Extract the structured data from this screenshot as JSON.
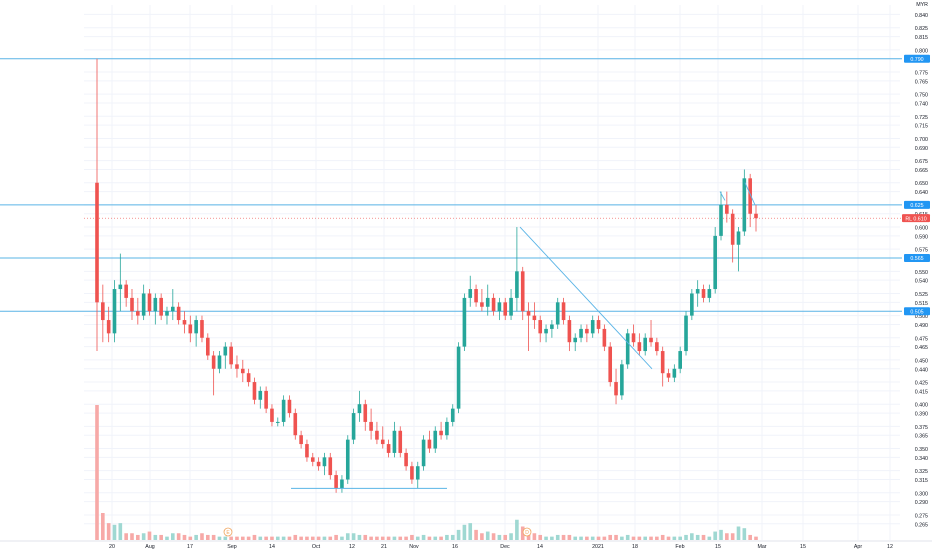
{
  "chart_data": {
    "type": "candlestick",
    "currency": "MYR",
    "colors": {
      "up": "#26a69a",
      "down": "#ef5350",
      "up_volume": "#9fd8d2",
      "down_volume": "#f7a9a7",
      "grid": "#f0f3fa",
      "level_line": "#5ab4e6",
      "trend_line": "#5ab4e6",
      "axis_text": "#131722",
      "last_price_badge": "#ef5350",
      "level_badge": "#2196f3"
    },
    "ylim": [
      0.258,
      0.845
    ],
    "y_ticks": [
      "0.840",
      "0.825",
      "0.815",
      "0.800",
      "0.790",
      "0.775",
      "0.765",
      "0.750",
      "0.740",
      "0.725",
      "0.715",
      "0.700",
      "0.690",
      "0.675",
      "0.665",
      "0.650",
      "0.640",
      "0.625",
      "0.615",
      "0.600",
      "0.590",
      "0.575",
      "0.565",
      "0.550",
      "0.540",
      "0.525",
      "0.515",
      "0.500",
      "0.490",
      "0.475",
      "0.465",
      "0.450",
      "0.440",
      "0.425",
      "0.415",
      "0.400",
      "0.390",
      "0.375",
      "0.365",
      "0.350",
      "0.340",
      "0.325",
      "0.315",
      "0.300",
      "0.290",
      "0.275",
      "0.265"
    ],
    "x_ticks": [
      "20",
      "Aug",
      "17",
      "Sep",
      "14",
      "Oct",
      "12",
      "21",
      "Nov",
      "16",
      "Dec",
      "14",
      "2021",
      "18",
      "Feb",
      "15",
      "Mar",
      "15",
      "Apr",
      "12"
    ],
    "horizontal_levels": [
      {
        "price": 0.79,
        "label": "0.790"
      },
      {
        "price": 0.625,
        "label": "0.625"
      },
      {
        "price": 0.565,
        "label": "0.565"
      },
      {
        "price": 0.505,
        "label": "0.505"
      }
    ],
    "last_price": {
      "price": 0.61,
      "label": "RL 0.610"
    },
    "event_markers": [
      "E",
      "D"
    ],
    "candles": [
      {
        "o": 0.65,
        "h": 0.79,
        "l": 0.46,
        "c": 0.515,
        "v": 0.4
      },
      {
        "o": 0.515,
        "h": 0.535,
        "l": 0.47,
        "c": 0.495,
        "v": 0.08
      },
      {
        "o": 0.495,
        "h": 0.51,
        "l": 0.47,
        "c": 0.48,
        "v": 0.05
      },
      {
        "o": 0.48,
        "h": 0.54,
        "l": 0.47,
        "c": 0.53,
        "v": 0.045
      },
      {
        "o": 0.53,
        "h": 0.57,
        "l": 0.505,
        "c": 0.535,
        "v": 0.05
      },
      {
        "o": 0.535,
        "h": 0.54,
        "l": 0.51,
        "c": 0.52,
        "v": 0.02
      },
      {
        "o": 0.52,
        "h": 0.53,
        "l": 0.495,
        "c": 0.505,
        "v": 0.02
      },
      {
        "o": 0.505,
        "h": 0.52,
        "l": 0.49,
        "c": 0.5,
        "v": 0.015
      },
      {
        "o": 0.5,
        "h": 0.535,
        "l": 0.495,
        "c": 0.525,
        "v": 0.02
      },
      {
        "o": 0.525,
        "h": 0.53,
        "l": 0.5,
        "c": 0.505,
        "v": 0.025
      },
      {
        "o": 0.505,
        "h": 0.525,
        "l": 0.49,
        "c": 0.52,
        "v": 0.015
      },
      {
        "o": 0.52,
        "h": 0.525,
        "l": 0.495,
        "c": 0.5,
        "v": 0.015
      },
      {
        "o": 0.5,
        "h": 0.51,
        "l": 0.49,
        "c": 0.505,
        "v": 0.01
      },
      {
        "o": 0.505,
        "h": 0.53,
        "l": 0.495,
        "c": 0.51,
        "v": 0.02
      },
      {
        "o": 0.51,
        "h": 0.515,
        "l": 0.49,
        "c": 0.495,
        "v": 0.02
      },
      {
        "o": 0.495,
        "h": 0.505,
        "l": 0.48,
        "c": 0.49,
        "v": 0.015
      },
      {
        "o": 0.49,
        "h": 0.5,
        "l": 0.47,
        "c": 0.48,
        "v": 0.01
      },
      {
        "o": 0.48,
        "h": 0.5,
        "l": 0.465,
        "c": 0.495,
        "v": 0.015
      },
      {
        "o": 0.495,
        "h": 0.5,
        "l": 0.47,
        "c": 0.475,
        "v": 0.02
      },
      {
        "o": 0.475,
        "h": 0.48,
        "l": 0.45,
        "c": 0.455,
        "v": 0.015
      },
      {
        "o": 0.455,
        "h": 0.46,
        "l": 0.41,
        "c": 0.44,
        "v": 0.015
      },
      {
        "o": 0.44,
        "h": 0.46,
        "l": 0.435,
        "c": 0.455,
        "v": 0.01
      },
      {
        "o": 0.455,
        "h": 0.47,
        "l": 0.44,
        "c": 0.465,
        "v": 0.01
      },
      {
        "o": 0.465,
        "h": 0.47,
        "l": 0.44,
        "c": 0.445,
        "v": 0.01
      },
      {
        "o": 0.445,
        "h": 0.455,
        "l": 0.43,
        "c": 0.44,
        "v": 0.01
      },
      {
        "o": 0.44,
        "h": 0.45,
        "l": 0.425,
        "c": 0.435,
        "v": 0.01
      },
      {
        "o": 0.435,
        "h": 0.44,
        "l": 0.42,
        "c": 0.425,
        "v": 0.01
      },
      {
        "o": 0.425,
        "h": 0.43,
        "l": 0.4,
        "c": 0.405,
        "v": 0.015
      },
      {
        "o": 0.405,
        "h": 0.42,
        "l": 0.395,
        "c": 0.415,
        "v": 0.01
      },
      {
        "o": 0.415,
        "h": 0.42,
        "l": 0.39,
        "c": 0.395,
        "v": 0.01
      },
      {
        "o": 0.395,
        "h": 0.4,
        "l": 0.375,
        "c": 0.38,
        "v": 0.01
      },
      {
        "o": 0.38,
        "h": 0.385,
        "l": 0.375,
        "c": 0.38,
        "v": 0.01
      },
      {
        "o": 0.38,
        "h": 0.41,
        "l": 0.375,
        "c": 0.405,
        "v": 0.01
      },
      {
        "o": 0.405,
        "h": 0.41,
        "l": 0.385,
        "c": 0.39,
        "v": 0.01
      },
      {
        "o": 0.39,
        "h": 0.395,
        "l": 0.36,
        "c": 0.365,
        "v": 0.015
      },
      {
        "o": 0.365,
        "h": 0.37,
        "l": 0.35,
        "c": 0.355,
        "v": 0.01
      },
      {
        "o": 0.355,
        "h": 0.36,
        "l": 0.335,
        "c": 0.34,
        "v": 0.01
      },
      {
        "o": 0.34,
        "h": 0.345,
        "l": 0.33,
        "c": 0.335,
        "v": 0.01
      },
      {
        "o": 0.335,
        "h": 0.34,
        "l": 0.325,
        "c": 0.33,
        "v": 0.01
      },
      {
        "o": 0.33,
        "h": 0.345,
        "l": 0.32,
        "c": 0.34,
        "v": 0.01
      },
      {
        "o": 0.34,
        "h": 0.345,
        "l": 0.315,
        "c": 0.32,
        "v": 0.01
      },
      {
        "o": 0.32,
        "h": 0.325,
        "l": 0.3,
        "c": 0.305,
        "v": 0.015
      },
      {
        "o": 0.305,
        "h": 0.32,
        "l": 0.3,
        "c": 0.315,
        "v": 0.01
      },
      {
        "o": 0.315,
        "h": 0.365,
        "l": 0.31,
        "c": 0.36,
        "v": 0.02
      },
      {
        "o": 0.36,
        "h": 0.395,
        "l": 0.355,
        "c": 0.39,
        "v": 0.02
      },
      {
        "o": 0.39,
        "h": 0.415,
        "l": 0.38,
        "c": 0.4,
        "v": 0.015
      },
      {
        "o": 0.4,
        "h": 0.405,
        "l": 0.37,
        "c": 0.38,
        "v": 0.015
      },
      {
        "o": 0.38,
        "h": 0.395,
        "l": 0.36,
        "c": 0.37,
        "v": 0.01
      },
      {
        "o": 0.37,
        "h": 0.38,
        "l": 0.355,
        "c": 0.36,
        "v": 0.01
      },
      {
        "o": 0.36,
        "h": 0.375,
        "l": 0.35,
        "c": 0.355,
        "v": 0.01
      },
      {
        "o": 0.355,
        "h": 0.36,
        "l": 0.34,
        "c": 0.345,
        "v": 0.01
      },
      {
        "o": 0.345,
        "h": 0.38,
        "l": 0.34,
        "c": 0.37,
        "v": 0.01
      },
      {
        "o": 0.37,
        "h": 0.375,
        "l": 0.34,
        "c": 0.345,
        "v": 0.01
      },
      {
        "o": 0.345,
        "h": 0.35,
        "l": 0.325,
        "c": 0.33,
        "v": 0.01
      },
      {
        "o": 0.33,
        "h": 0.335,
        "l": 0.31,
        "c": 0.315,
        "v": 0.015
      },
      {
        "o": 0.315,
        "h": 0.335,
        "l": 0.305,
        "c": 0.33,
        "v": 0.01
      },
      {
        "o": 0.33,
        "h": 0.365,
        "l": 0.325,
        "c": 0.36,
        "v": 0.015
      },
      {
        "o": 0.36,
        "h": 0.37,
        "l": 0.345,
        "c": 0.35,
        "v": 0.01
      },
      {
        "o": 0.35,
        "h": 0.375,
        "l": 0.345,
        "c": 0.37,
        "v": 0.01
      },
      {
        "o": 0.37,
        "h": 0.38,
        "l": 0.36,
        "c": 0.365,
        "v": 0.01
      },
      {
        "o": 0.365,
        "h": 0.385,
        "l": 0.36,
        "c": 0.38,
        "v": 0.015
      },
      {
        "o": 0.38,
        "h": 0.4,
        "l": 0.375,
        "c": 0.395,
        "v": 0.015
      },
      {
        "o": 0.395,
        "h": 0.47,
        "l": 0.39,
        "c": 0.465,
        "v": 0.03
      },
      {
        "o": 0.465,
        "h": 0.525,
        "l": 0.46,
        "c": 0.52,
        "v": 0.045
      },
      {
        "o": 0.52,
        "h": 0.545,
        "l": 0.51,
        "c": 0.53,
        "v": 0.05
      },
      {
        "o": 0.53,
        "h": 0.535,
        "l": 0.51,
        "c": 0.515,
        "v": 0.03
      },
      {
        "o": 0.515,
        "h": 0.53,
        "l": 0.505,
        "c": 0.51,
        "v": 0.02
      },
      {
        "o": 0.51,
        "h": 0.535,
        "l": 0.5,
        "c": 0.52,
        "v": 0.025
      },
      {
        "o": 0.52,
        "h": 0.525,
        "l": 0.5,
        "c": 0.505,
        "v": 0.02
      },
      {
        "o": 0.505,
        "h": 0.52,
        "l": 0.495,
        "c": 0.515,
        "v": 0.015
      },
      {
        "o": 0.515,
        "h": 0.52,
        "l": 0.495,
        "c": 0.5,
        "v": 0.015
      },
      {
        "o": 0.5,
        "h": 0.53,
        "l": 0.495,
        "c": 0.52,
        "v": 0.02
      },
      {
        "o": 0.52,
        "h": 0.6,
        "l": 0.505,
        "c": 0.55,
        "v": 0.06
      },
      {
        "o": 0.55,
        "h": 0.555,
        "l": 0.495,
        "c": 0.505,
        "v": 0.04
      },
      {
        "o": 0.505,
        "h": 0.515,
        "l": 0.46,
        "c": 0.5,
        "v": 0.03
      },
      {
        "o": 0.5,
        "h": 0.515,
        "l": 0.485,
        "c": 0.495,
        "v": 0.02
      },
      {
        "o": 0.495,
        "h": 0.5,
        "l": 0.47,
        "c": 0.48,
        "v": 0.015
      },
      {
        "o": 0.48,
        "h": 0.49,
        "l": 0.47,
        "c": 0.485,
        "v": 0.01
      },
      {
        "o": 0.485,
        "h": 0.495,
        "l": 0.475,
        "c": 0.49,
        "v": 0.01
      },
      {
        "o": 0.49,
        "h": 0.52,
        "l": 0.485,
        "c": 0.515,
        "v": 0.015
      },
      {
        "o": 0.515,
        "h": 0.52,
        "l": 0.49,
        "c": 0.495,
        "v": 0.015
      },
      {
        "o": 0.495,
        "h": 0.5,
        "l": 0.46,
        "c": 0.47,
        "v": 0.015
      },
      {
        "o": 0.47,
        "h": 0.48,
        "l": 0.46,
        "c": 0.475,
        "v": 0.01
      },
      {
        "o": 0.475,
        "h": 0.49,
        "l": 0.47,
        "c": 0.485,
        "v": 0.01
      },
      {
        "o": 0.485,
        "h": 0.49,
        "l": 0.47,
        "c": 0.48,
        "v": 0.01
      },
      {
        "o": 0.48,
        "h": 0.5,
        "l": 0.475,
        "c": 0.495,
        "v": 0.01
      },
      {
        "o": 0.495,
        "h": 0.5,
        "l": 0.48,
        "c": 0.485,
        "v": 0.01
      },
      {
        "o": 0.485,
        "h": 0.49,
        "l": 0.46,
        "c": 0.465,
        "v": 0.01
      },
      {
        "o": 0.465,
        "h": 0.47,
        "l": 0.42,
        "c": 0.425,
        "v": 0.015
      },
      {
        "o": 0.425,
        "h": 0.44,
        "l": 0.4,
        "c": 0.41,
        "v": 0.015
      },
      {
        "o": 0.41,
        "h": 0.45,
        "l": 0.405,
        "c": 0.445,
        "v": 0.01
      },
      {
        "o": 0.445,
        "h": 0.485,
        "l": 0.44,
        "c": 0.48,
        "v": 0.015
      },
      {
        "o": 0.48,
        "h": 0.49,
        "l": 0.465,
        "c": 0.47,
        "v": 0.01
      },
      {
        "o": 0.47,
        "h": 0.48,
        "l": 0.455,
        "c": 0.46,
        "v": 0.01
      },
      {
        "o": 0.46,
        "h": 0.48,
        "l": 0.455,
        "c": 0.475,
        "v": 0.01
      },
      {
        "o": 0.475,
        "h": 0.495,
        "l": 0.465,
        "c": 0.47,
        "v": 0.01
      },
      {
        "o": 0.47,
        "h": 0.475,
        "l": 0.455,
        "c": 0.46,
        "v": 0.01
      },
      {
        "o": 0.46,
        "h": 0.465,
        "l": 0.42,
        "c": 0.435,
        "v": 0.015
      },
      {
        "o": 0.435,
        "h": 0.44,
        "l": 0.425,
        "c": 0.43,
        "v": 0.01
      },
      {
        "o": 0.43,
        "h": 0.445,
        "l": 0.425,
        "c": 0.44,
        "v": 0.01
      },
      {
        "o": 0.44,
        "h": 0.465,
        "l": 0.435,
        "c": 0.46,
        "v": 0.01
      },
      {
        "o": 0.46,
        "h": 0.505,
        "l": 0.455,
        "c": 0.5,
        "v": 0.015
      },
      {
        "o": 0.5,
        "h": 0.53,
        "l": 0.495,
        "c": 0.525,
        "v": 0.02
      },
      {
        "o": 0.525,
        "h": 0.54,
        "l": 0.51,
        "c": 0.53,
        "v": 0.015
      },
      {
        "o": 0.53,
        "h": 0.535,
        "l": 0.515,
        "c": 0.52,
        "v": 0.015
      },
      {
        "o": 0.52,
        "h": 0.535,
        "l": 0.515,
        "c": 0.53,
        "v": 0.01
      },
      {
        "o": 0.53,
        "h": 0.6,
        "l": 0.525,
        "c": 0.59,
        "v": 0.025
      },
      {
        "o": 0.59,
        "h": 0.64,
        "l": 0.585,
        "c": 0.625,
        "v": 0.03
      },
      {
        "o": 0.625,
        "h": 0.64,
        "l": 0.605,
        "c": 0.615,
        "v": 0.02
      },
      {
        "o": 0.615,
        "h": 0.62,
        "l": 0.56,
        "c": 0.58,
        "v": 0.02
      },
      {
        "o": 0.58,
        "h": 0.6,
        "l": 0.55,
        "c": 0.595,
        "v": 0.04
      },
      {
        "o": 0.595,
        "h": 0.665,
        "l": 0.59,
        "c": 0.655,
        "v": 0.035
      },
      {
        "o": 0.655,
        "h": 0.66,
        "l": 0.6,
        "c": 0.615,
        "v": 0.015
      },
      {
        "o": 0.615,
        "h": 0.625,
        "l": 0.595,
        "c": 0.61,
        "v": 0.01
      }
    ]
  }
}
